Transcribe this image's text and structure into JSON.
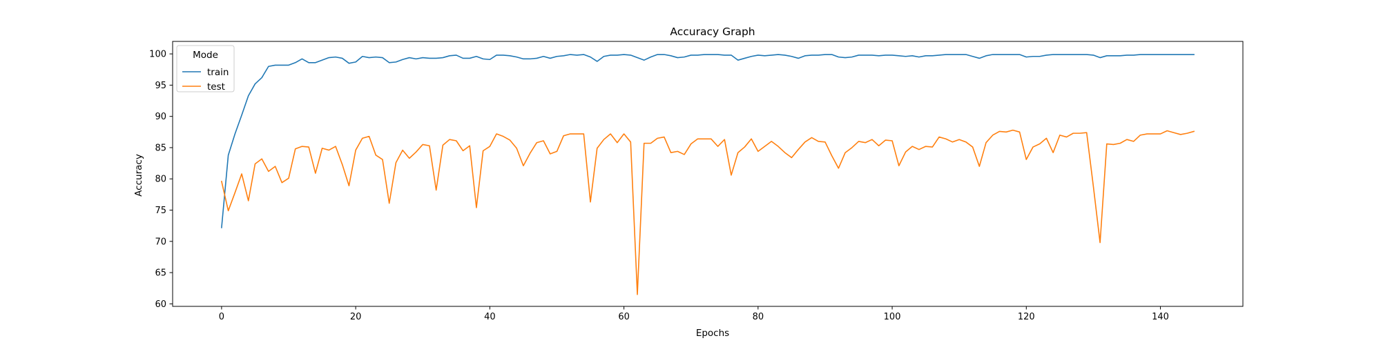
{
  "chart_data": {
    "type": "line",
    "title": "Accuracy Graph",
    "xlabel": "Epochs",
    "ylabel": "Accuracy",
    "xlim": [
      -7.3,
      152.3
    ],
    "ylim": [
      59.6,
      102.0
    ],
    "xticks": [
      0,
      20,
      40,
      60,
      80,
      100,
      120,
      140
    ],
    "yticks": [
      60,
      65,
      70,
      75,
      80,
      85,
      90,
      95,
      100
    ],
    "grid": false,
    "legend": {
      "title": "Mode",
      "placement": "top-left"
    },
    "series": [
      {
        "name": "train",
        "color": "#1f77b4",
        "values": [
          72.2,
          83.8,
          87.2,
          90.2,
          93.3,
          95.2,
          96.2,
          98.0,
          98.2,
          98.2,
          98.2,
          98.6,
          99.2,
          98.6,
          98.6,
          99.0,
          99.4,
          99.5,
          99.3,
          98.5,
          98.7,
          99.6,
          99.4,
          99.5,
          99.4,
          98.6,
          98.7,
          99.1,
          99.4,
          99.2,
          99.4,
          99.3,
          99.3,
          99.4,
          99.7,
          99.8,
          99.3,
          99.3,
          99.6,
          99.2,
          99.1,
          99.8,
          99.8,
          99.7,
          99.5,
          99.2,
          99.2,
          99.3,
          99.6,
          99.3,
          99.6,
          99.7,
          99.9,
          99.8,
          99.9,
          99.5,
          98.8,
          99.6,
          99.8,
          99.8,
          99.9,
          99.8,
          99.4,
          99.0,
          99.5,
          99.9,
          99.9,
          99.7,
          99.4,
          99.5,
          99.8,
          99.8,
          99.9,
          99.9,
          99.9,
          99.8,
          99.8,
          99.0,
          99.3,
          99.6,
          99.8,
          99.7,
          99.8,
          99.9,
          99.8,
          99.6,
          99.3,
          99.7,
          99.8,
          99.8,
          99.9,
          99.9,
          99.5,
          99.4,
          99.5,
          99.8,
          99.8,
          99.8,
          99.7,
          99.8,
          99.8,
          99.7,
          99.6,
          99.7,
          99.5,
          99.7,
          99.7,
          99.8,
          99.9,
          99.9,
          99.9,
          99.9,
          99.6,
          99.3,
          99.7,
          99.9,
          99.9,
          99.9,
          99.9,
          99.9,
          99.5,
          99.6,
          99.6,
          99.8,
          99.9,
          99.9,
          99.9,
          99.9,
          99.9,
          99.9,
          99.8,
          99.4,
          99.7,
          99.7,
          99.7,
          99.8,
          99.8,
          99.9,
          99.9,
          99.9,
          99.9,
          99.9,
          99.9,
          99.9,
          99.9,
          99.9
        ]
      },
      {
        "name": "test",
        "color": "#ff7f0e",
        "values": [
          79.6,
          74.9,
          77.8,
          80.8,
          76.5,
          82.4,
          83.2,
          81.2,
          82.0,
          79.4,
          80.1,
          84.8,
          85.2,
          85.1,
          80.9,
          84.9,
          84.6,
          85.2,
          82.3,
          78.9,
          84.6,
          86.5,
          86.8,
          83.8,
          83.1,
          76.1,
          82.6,
          84.6,
          83.3,
          84.3,
          85.5,
          85.3,
          78.2,
          85.4,
          86.3,
          86.1,
          84.5,
          85.3,
          75.4,
          84.5,
          85.2,
          87.2,
          86.8,
          86.2,
          84.9,
          82.1,
          84.1,
          85.8,
          86.1,
          84.0,
          84.4,
          86.9,
          87.2,
          87.2,
          87.2,
          76.3,
          84.9,
          86.3,
          87.2,
          85.8,
          87.2,
          85.9,
          61.5,
          85.7,
          85.7,
          86.5,
          86.7,
          84.2,
          84.4,
          83.9,
          85.6,
          86.4,
          86.4,
          86.4,
          85.2,
          86.3,
          80.6,
          84.2,
          85.1,
          86.4,
          84.4,
          85.2,
          86.0,
          85.2,
          84.2,
          83.4,
          84.7,
          85.9,
          86.6,
          86.0,
          85.9,
          83.7,
          81.7,
          84.2,
          85.0,
          86.0,
          85.8,
          86.3,
          85.3,
          86.2,
          86.1,
          82.1,
          84.3,
          85.2,
          84.7,
          85.2,
          85.1,
          86.7,
          86.4,
          85.9,
          86.3,
          85.9,
          85.1,
          82.0,
          85.8,
          87.0,
          87.6,
          87.5,
          87.8,
          87.5,
          83.1,
          85.1,
          85.6,
          86.5,
          84.2,
          87.0,
          86.7,
          87.3,
          87.3,
          87.4,
          78.8,
          69.8,
          85.6,
          85.5,
          85.7,
          86.3,
          86.0,
          87.0,
          87.2,
          87.2,
          87.2,
          87.7,
          87.4,
          87.1,
          87.3,
          87.6
        ]
      }
    ]
  }
}
